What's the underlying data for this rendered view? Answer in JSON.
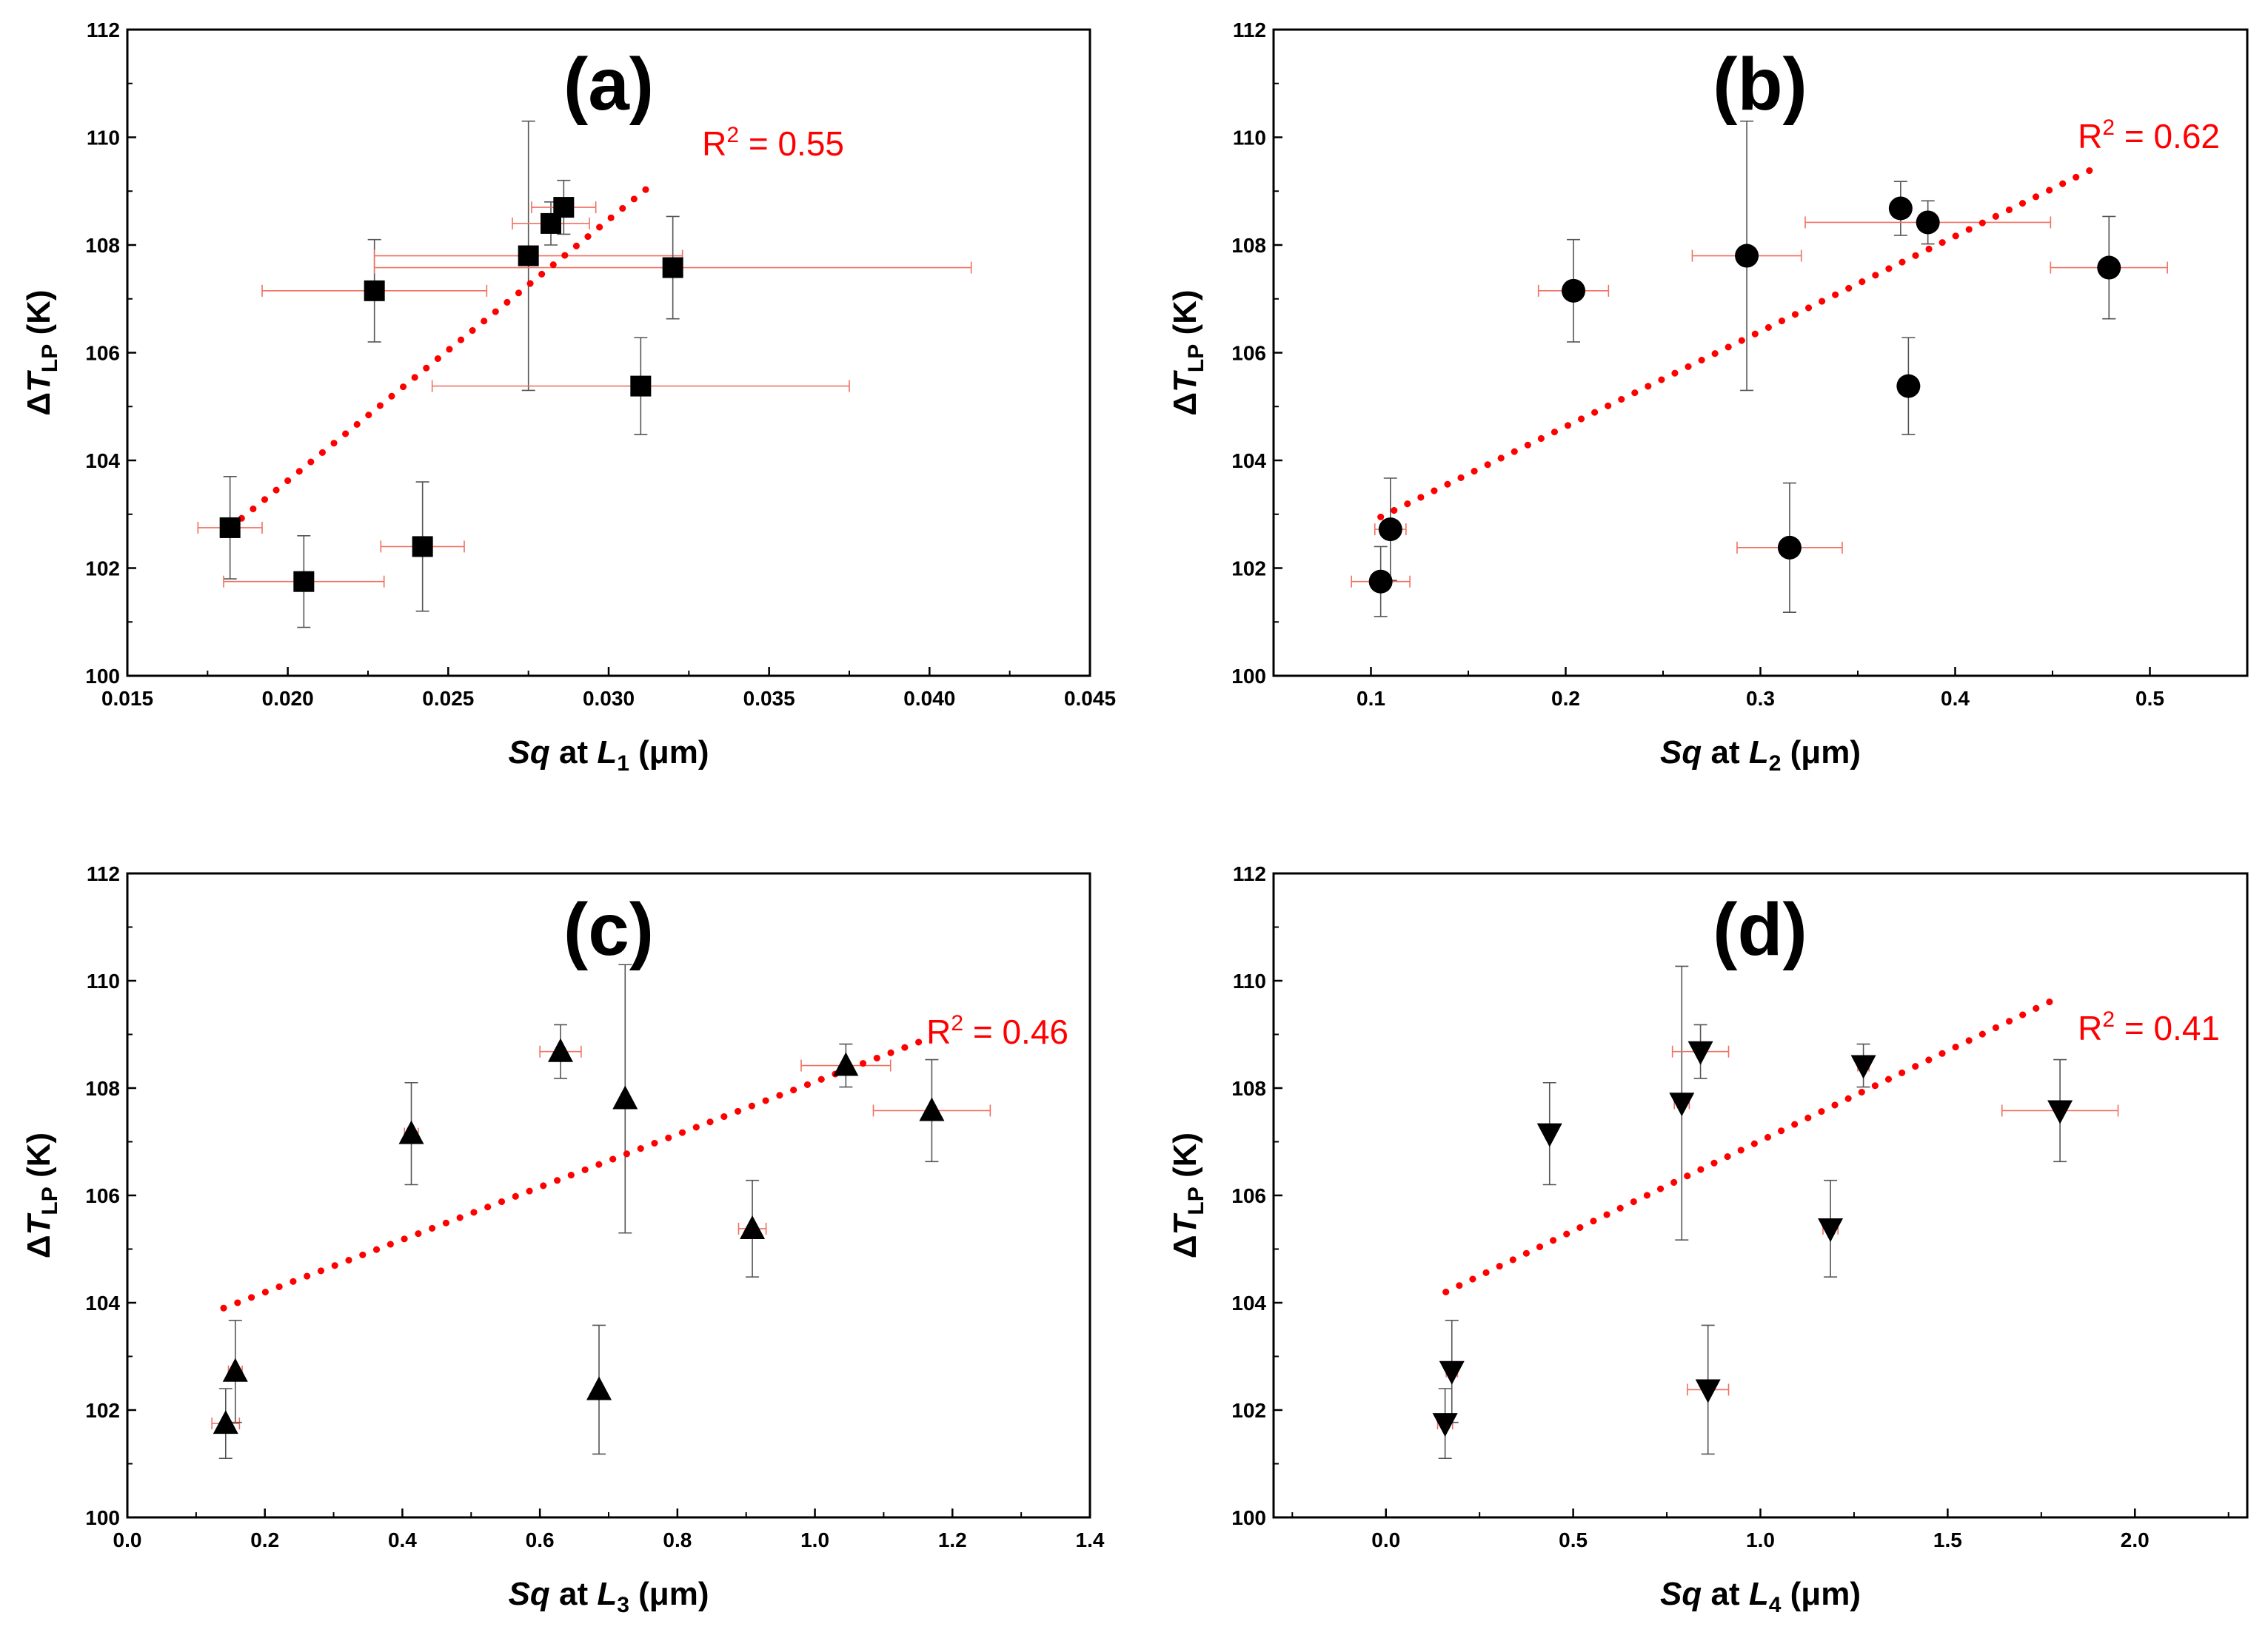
{
  "colors": {
    "marker": "#000000",
    "trend": "#ff0000",
    "xerror": "#f07060",
    "yerror": "#555555"
  },
  "chart_data": [
    {
      "type": "scatter",
      "panel_label": "(a)",
      "marker": "square",
      "xlabel": {
        "italic": "Sq",
        "mid": " at ",
        "var": "L",
        "sub": "1",
        "unit": " (μm)"
      },
      "ylabel": {
        "delta": "Δ",
        "var": "T",
        "sub": "LP",
        "unit": " (K)"
      },
      "xlim": [
        0.015,
        0.045
      ],
      "ylim": [
        100,
        112
      ],
      "xticks": [
        "0.015",
        "0.020",
        "0.025",
        "0.030",
        "0.035",
        "0.040",
        "0.045"
      ],
      "yticks": [
        "100",
        "102",
        "104",
        "106",
        "108",
        "110",
        "112"
      ],
      "points": [
        {
          "x": 0.0182,
          "y": 102.75,
          "xerr": 0.001,
          "yerr": 0.95
        },
        {
          "x": 0.0205,
          "y": 101.75,
          "xerr": 0.0025,
          "yerr": 0.85
        },
        {
          "x": 0.0227,
          "y": 107.15,
          "xerr": 0.0035,
          "yerr": 0.95
        },
        {
          "x": 0.0242,
          "y": 102.4,
          "xerr": 0.0013,
          "yerr": 1.2
        },
        {
          "x": 0.0275,
          "y": 107.8,
          "xerr": 0.0048,
          "yerr": 2.5
        },
        {
          "x": 0.0282,
          "y": 108.4,
          "xerr": 0.0012,
          "yerr": 0.4
        },
        {
          "x": 0.0286,
          "y": 108.7,
          "xerr": 0.001,
          "yerr": 0.5
        },
        {
          "x": 0.031,
          "y": 105.38,
          "xerr": 0.0065,
          "yerr": 0.9
        },
        {
          "x": 0.032,
          "y": 107.58,
          "xerr": 0.0093,
          "yerr": 0.95
        }
      ],
      "trendline": {
        "x": [
          0.0182,
          0.0313
        ],
        "y": [
          102.75,
          109.1
        ],
        "label": {
          "base": "R",
          "sup": "2",
          "rest": " = 0.55"
        }
      }
    },
    {
      "type": "scatter",
      "panel_label": "(b)",
      "marker": "circle",
      "xlabel": {
        "italic": "Sq",
        "mid": " at ",
        "var": "L",
        "sub": "2",
        "unit": " (μm)"
      },
      "ylabel": {
        "delta": "Δ",
        "var": "T",
        "sub": "LP",
        "unit": " (K)"
      },
      "xlim": [
        0.05,
        0.55
      ],
      "ylim": [
        100,
        112
      ],
      "xticks": [
        "0.1",
        "0.2",
        "0.3",
        "0.4",
        "0.5"
      ],
      "yticks": [
        "100",
        "102",
        "104",
        "106",
        "108",
        "110",
        "112"
      ],
      "points": [
        {
          "x": 0.105,
          "y": 101.75,
          "xerr": 0.015,
          "yerr": 0.65
        },
        {
          "x": 0.11,
          "y": 102.72,
          "xerr": 0.008,
          "yerr": 0.95
        },
        {
          "x": 0.204,
          "y": 107.15,
          "xerr": 0.018,
          "yerr": 0.95
        },
        {
          "x": 0.293,
          "y": 107.8,
          "xerr": 0.028,
          "yerr": 2.5
        },
        {
          "x": 0.315,
          "y": 102.38,
          "xerr": 0.027,
          "yerr": 1.2
        },
        {
          "x": 0.372,
          "y": 108.68,
          "xerr": 0.005,
          "yerr": 0.5
        },
        {
          "x": 0.376,
          "y": 105.38,
          "xerr": 0.004,
          "yerr": 0.9
        },
        {
          "x": 0.386,
          "y": 108.42,
          "xerr": 0.063,
          "yerr": 0.4
        },
        {
          "x": 0.479,
          "y": 107.58,
          "xerr": 0.03,
          "yerr": 0.95
        }
      ],
      "trendline": {
        "x": [
          0.105,
          0.47
        ],
        "y": [
          102.95,
          109.4
        ],
        "label": {
          "base": "R",
          "sup": "2",
          "rest": " = 0.62"
        }
      }
    },
    {
      "type": "scatter",
      "panel_label": "(c)",
      "marker": "triangle-up",
      "xlabel": {
        "italic": "Sq",
        "mid": " at ",
        "var": "L",
        "sub": "3",
        "unit": " (μm)"
      },
      "ylabel": {
        "delta": "Δ",
        "var": "T",
        "sub": "LP",
        "unit": " (K)"
      },
      "xlim": [
        0.0,
        1.4
      ],
      "ylim": [
        100,
        112
      ],
      "xticks": [
        "0.0",
        "0.2",
        "0.4",
        "0.6",
        "0.8",
        "1.0",
        "1.2",
        "1.4"
      ],
      "yticks": [
        "100",
        "102",
        "104",
        "106",
        "108",
        "110",
        "112"
      ],
      "points": [
        {
          "x": 0.143,
          "y": 101.75,
          "xerr": 0.02,
          "yerr": 0.65
        },
        {
          "x": 0.157,
          "y": 102.72,
          "xerr": 0.01,
          "yerr": 0.95
        },
        {
          "x": 0.413,
          "y": 107.15,
          "xerr": 0.01,
          "yerr": 0.95
        },
        {
          "x": 0.63,
          "y": 108.68,
          "xerr": 0.03,
          "yerr": 0.5
        },
        {
          "x": 0.686,
          "y": 102.38,
          "xerr": 0.005,
          "yerr": 1.2
        },
        {
          "x": 0.724,
          "y": 107.8,
          "xerr": 0.005,
          "yerr": 2.5
        },
        {
          "x": 0.909,
          "y": 105.38,
          "xerr": 0.02,
          "yerr": 0.9
        },
        {
          "x": 1.045,
          "y": 108.42,
          "xerr": 0.065,
          "yerr": 0.4
        },
        {
          "x": 1.17,
          "y": 107.58,
          "xerr": 0.085,
          "yerr": 0.95
        }
      ],
      "trendline": {
        "x": [
          0.14,
          1.17
        ],
        "y": [
          103.9,
          108.95
        ],
        "label": {
          "base": "R",
          "sup": "2",
          "rest": " = 0.46"
        }
      }
    },
    {
      "type": "scatter",
      "panel_label": "(d)",
      "marker": "triangle-down",
      "xlabel": {
        "italic": "Sq",
        "mid": " at ",
        "var": "L",
        "sub": "4",
        "unit": " (μm)"
      },
      "ylabel": {
        "delta": "Δ",
        "var": "T",
        "sub": "LP",
        "unit": " (K)"
      },
      "xlim": [
        -0.3,
        2.3
      ],
      "ylim": [
        100,
        112
      ],
      "xticks": [
        "0.0",
        "0.5",
        "1.0",
        "1.5",
        "2.0"
      ],
      "yticks": [
        "100",
        "102",
        "104",
        "106",
        "108",
        "110",
        "112"
      ],
      "points": [
        {
          "x": 0.158,
          "y": 101.75,
          "xerr": 0.02,
          "yerr": 0.65
        },
        {
          "x": 0.176,
          "y": 102.72,
          "xerr": 0.015,
          "yerr": 0.95
        },
        {
          "x": 0.437,
          "y": 107.15,
          "xerr": 0.01,
          "yerr": 0.95
        },
        {
          "x": 0.79,
          "y": 107.72,
          "xerr": 0.02,
          "yerr": 2.55
        },
        {
          "x": 0.84,
          "y": 108.68,
          "xerr": 0.075,
          "yerr": 0.5
        },
        {
          "x": 0.86,
          "y": 102.38,
          "xerr": 0.055,
          "yerr": 1.2
        },
        {
          "x": 1.187,
          "y": 105.38,
          "xerr": 0.02,
          "yerr": 0.9
        },
        {
          "x": 1.275,
          "y": 108.42,
          "xerr": 0.015,
          "yerr": 0.4
        },
        {
          "x": 1.8,
          "y": 107.58,
          "xerr": 0.155,
          "yerr": 0.95
        }
      ],
      "trendline": {
        "x": [
          0.16,
          1.8
        ],
        "y": [
          104.2,
          109.7
        ],
        "label": {
          "base": "R",
          "sup": "2",
          "rest": " = 0.41"
        }
      }
    }
  ]
}
